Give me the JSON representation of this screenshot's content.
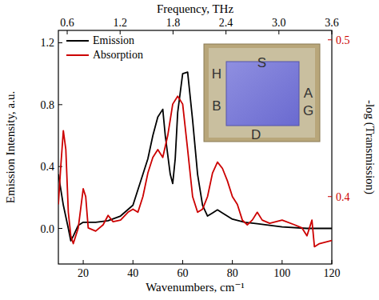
{
  "chart_data": {
    "type": "line",
    "x_label": "Wavenumbers, cm⁻¹",
    "x2_label": "Frequency, THz",
    "y_label": "Emission Intensity, a.u.",
    "y2_label": "-log (Transmission)",
    "xlim": [
      10,
      120
    ],
    "xticks": [
      20,
      40,
      60,
      80,
      100,
      120
    ],
    "x2lim": [
      0.5,
      3.6
    ],
    "x2ticks": [
      0.6,
      1.2,
      1.8,
      2.4,
      {
        "value": 3,
        "label": "3.0"
      },
      3.6
    ],
    "ylim": [
      -0.23,
      1.28
    ],
    "yticks": [
      {
        "value": 0,
        "label": "0.0"
      },
      0.4,
      0.8,
      1.2
    ],
    "y2lim": [
      0.357,
      0.506
    ],
    "y2ticks": [
      0.4,
      0.5
    ],
    "legend": "upper left",
    "annotations": [
      "S",
      "H",
      "B",
      "D",
      "A",
      "G"
    ],
    "series": [
      {
        "name": "Emission",
        "color": "#000000",
        "x": [
          10,
          12,
          14,
          15,
          16,
          18,
          20,
          25,
          30,
          35,
          40,
          43,
          46,
          48,
          50,
          52,
          53,
          55,
          56,
          57,
          58,
          60,
          62,
          64,
          66,
          68,
          70,
          72,
          74,
          76,
          80,
          85,
          90,
          100,
          110,
          120
        ],
        "values": [
          0.35,
          0.15,
          0.0,
          -0.08,
          -0.05,
          0.02,
          0.04,
          0.04,
          0.05,
          0.08,
          0.15,
          0.3,
          0.45,
          0.6,
          0.72,
          0.77,
          0.6,
          0.35,
          0.29,
          0.45,
          0.75,
          1.0,
          1.01,
          0.7,
          0.35,
          0.15,
          0.08,
          0.1,
          0.12,
          0.1,
          0.06,
          0.04,
          0.03,
          0.01,
          0.0,
          0.0
        ]
      },
      {
        "name": "Absorption",
        "color": "#cc0000",
        "axis": "y2",
        "x": [
          10,
          11,
          12,
          13,
          14,
          15,
          16,
          18,
          20,
          21,
          22,
          25,
          28,
          30,
          32,
          35,
          38,
          40,
          42,
          44,
          46,
          48,
          50,
          52,
          54,
          56,
          58,
          60,
          62,
          64,
          66,
          68,
          70,
          72,
          74,
          76,
          78,
          80,
          82,
          84,
          86,
          88,
          90,
          92,
          95,
          100,
          105,
          108,
          110,
          112,
          113,
          115,
          120
        ],
        "values": [
          0.395,
          0.42,
          0.442,
          0.43,
          0.39,
          0.375,
          0.37,
          0.38,
          0.405,
          0.4,
          0.38,
          0.378,
          0.382,
          0.388,
          0.384,
          0.385,
          0.39,
          0.392,
          0.39,
          0.4,
          0.415,
          0.425,
          0.43,
          0.425,
          0.439,
          0.459,
          0.464,
          0.459,
          0.43,
          0.4,
          0.39,
          0.392,
          0.4,
          0.415,
          0.422,
          0.418,
          0.41,
          0.4,
          0.395,
          0.385,
          0.382,
          0.385,
          0.39,
          0.385,
          0.383,
          0.385,
          0.382,
          0.38,
          0.375,
          0.385,
          0.368,
          0.37,
          0.372
        ]
      }
    ]
  }
}
